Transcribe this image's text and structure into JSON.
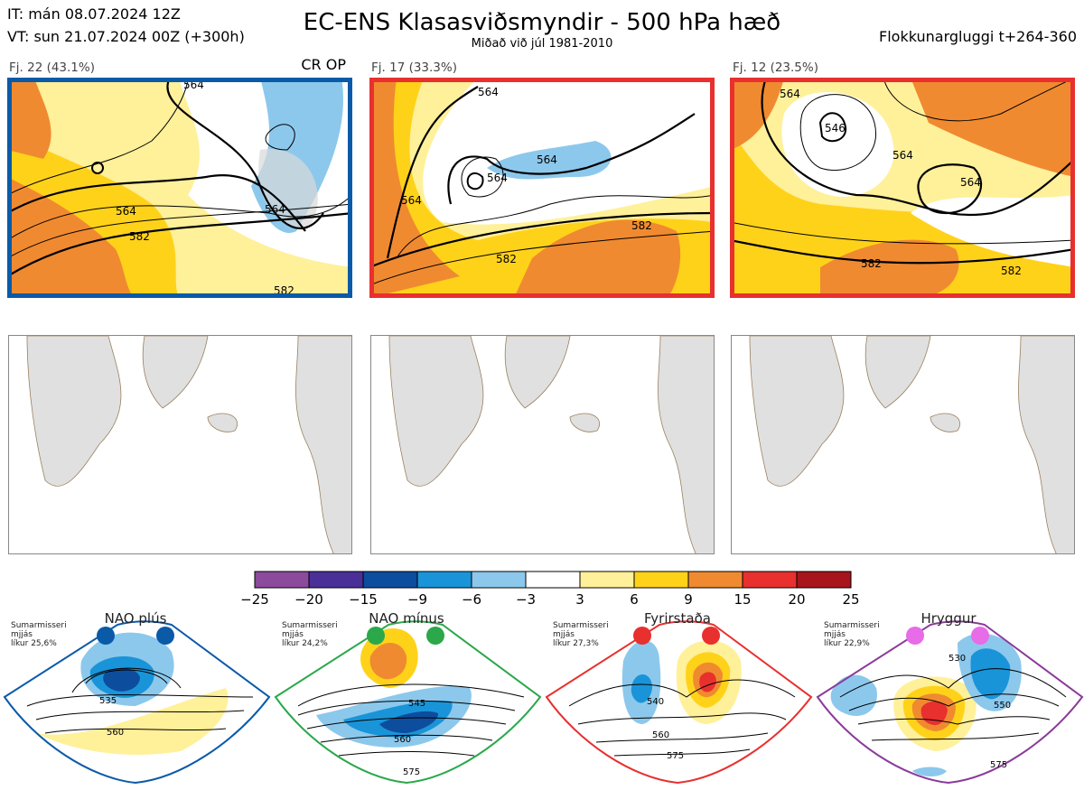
{
  "header": {
    "init_time": "IT: mán 08.07.2024 12Z",
    "valid_time": "VT: sun 21.07.2024 00Z  (+300h)",
    "title": "EC-ENS Klasasviðsmyndir - 500 hPa hæð",
    "subtitle": "Miðað við júl 1981-2010",
    "window": "Flokkunargluggi t+264-360"
  },
  "clusters": [
    {
      "label": "Fj. 22 (43.1%)",
      "border_color": "#0a5aa8",
      "tag": "CR OP",
      "contour_labels": [
        "564",
        "564",
        "582",
        "564",
        "582"
      ]
    },
    {
      "label": "Fj. 17 (33.3%)",
      "border_color": "#e8302e",
      "contour_labels": [
        "564",
        "564",
        "564",
        "564",
        "582",
        "582"
      ]
    },
    {
      "label": "Fj. 12 (23.5%)",
      "border_color": "#e8302e",
      "contour_labels": [
        "564",
        "546",
        "564",
        "564",
        "582",
        "582"
      ]
    }
  ],
  "colorbar": {
    "ticks": [
      "−25",
      "−20",
      "−15",
      "−9",
      "−6",
      "−3",
      "3",
      "6",
      "9",
      "15",
      "20",
      "25"
    ],
    "colors": [
      "#8b4a9c",
      "#4a2f99",
      "#0d4d9e",
      "#1a94d8",
      "#8cc8ec",
      "#ffffff",
      "#fff09a",
      "#ffd21a",
      "#f08a30",
      "#e8302e",
      "#a8141c"
    ]
  },
  "regimes": [
    {
      "name": "NAO plús",
      "info": [
        "Sumarmisseri",
        "mjjás",
        "líkur 25,6%"
      ],
      "border_color": "#0a5aa8",
      "dot_color": "#0a5aa8",
      "contour_labels": [
        "535",
        "560"
      ]
    },
    {
      "name": "NAO mínus",
      "info": [
        "Sumarmisseri",
        "mjjás",
        "líkur 24,2%"
      ],
      "border_color": "#2aa84a",
      "dot_color": "#2aa84a",
      "contour_labels": [
        "545",
        "560",
        "575"
      ]
    },
    {
      "name": "Fyrirstaða",
      "info": [
        "Sumarmisseri",
        "mjjás",
        "líkur 27,3%"
      ],
      "border_color": "#e8302e",
      "dot_color": "#e8302e",
      "contour_labels": [
        "540",
        "560",
        "575"
      ]
    },
    {
      "name": "Hryggur",
      "info": [
        "Sumarmisseri",
        "mjjás",
        "líkur 22,9%"
      ],
      "border_color": "#8a3b9a",
      "dot_color": "#e86be8",
      "contour_labels": [
        "530",
        "550",
        "575"
      ]
    }
  ]
}
